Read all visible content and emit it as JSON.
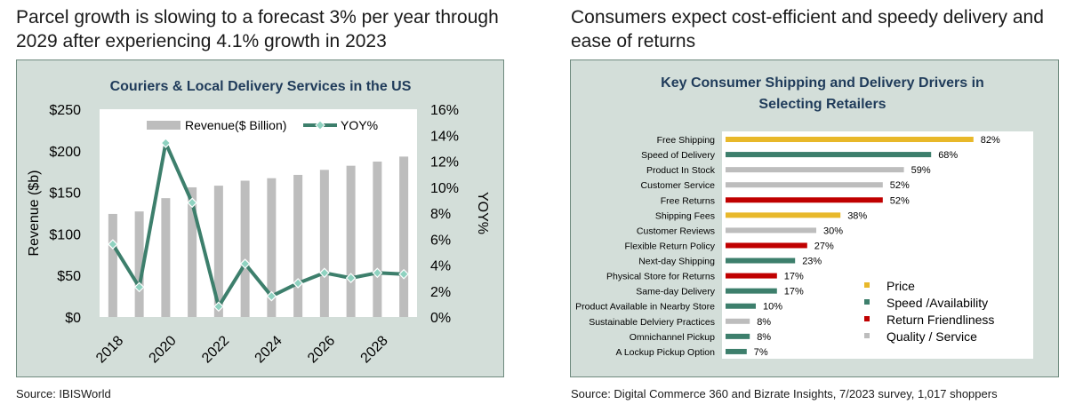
{
  "left": {
    "heading": "Parcel growth is slowing to a forecast 3% per year through 2029 after experiencing 4.1% growth in 2023",
    "source": "Source: IBISWorld"
  },
  "right": {
    "heading": "Consumers expect cost-efficient and speedy delivery and ease of returns",
    "source": "Source: Digital Commerce 360 and Bizrate Insights, 7/2023 survey,  1,017 shoppers"
  },
  "colors": {
    "bar_gray": "#bdbdbd",
    "line_green": "#3d7f6c",
    "price": "#e8b82a",
    "speed": "#3d7f6c",
    "returns": "#c00000",
    "quality": "#bdbdbd",
    "panel_bg": "#d3ded9",
    "title_blue": "#1f3b5a"
  },
  "chart_data": [
    {
      "type": "bar+line",
      "title": "Couriers & Local Delivery Services in the US",
      "ylabel": "Revenue ($b)",
      "y2label": "YOY%",
      "ylim": [
        0,
        250
      ],
      "y2lim": [
        0,
        16
      ],
      "y_ticks": [
        "$0",
        "$50",
        "$100",
        "$150",
        "$200",
        "$250"
      ],
      "y2_ticks": [
        "0%",
        "2%",
        "4%",
        "6%",
        "8%",
        "10%",
        "12%",
        "14%",
        "16%"
      ],
      "x_tick_labels": [
        "2018",
        "2020",
        "2022",
        "2024",
        "2026",
        "2028"
      ],
      "x": [
        2018,
        2019,
        2020,
        2021,
        2022,
        2023,
        2024,
        2025,
        2026,
        2027,
        2028,
        2029
      ],
      "legend_placement": "top",
      "series": [
        {
          "name": "Revenue($ Billion)",
          "type": "bar",
          "values": [
            124,
            127,
            143,
            156,
            158,
            164,
            167,
            171,
            177,
            182,
            187,
            193
          ]
        },
        {
          "name": "YOY%",
          "type": "line",
          "axis": "secondary",
          "values": [
            5.6,
            2.3,
            13.4,
            8.8,
            0.8,
            4.1,
            1.6,
            2.6,
            3.4,
            3.0,
            3.4,
            3.3
          ]
        }
      ]
    },
    {
      "type": "bar",
      "orientation": "horizontal",
      "title": "Key Consumer Shipping and Delivery Drivers in Selecting Retailers",
      "xlim": [
        0,
        100
      ],
      "legend_placement": "bottom-right",
      "legend": [
        {
          "name": "Price",
          "key": "price"
        },
        {
          "name": "Speed /Availability",
          "key": "speed"
        },
        {
          "name": "Return Friendliness",
          "key": "returns"
        },
        {
          "name": "Quality / Service",
          "key": "quality"
        }
      ],
      "categories": [
        "Free Shipping",
        "Speed of Delivery",
        "Product In Stock",
        "Customer Service",
        "Free Returns",
        "Shipping Fees",
        "Customer Reviews",
        "Flexible Return Policy",
        "Next-day Shipping",
        "Physical Store for Returns",
        "Same-day Delivery",
        "Product Available in Nearby Store",
        "Sustainable Delviery Practices",
        "Omnichannel Pickup",
        "A Lockup Pickup Option"
      ],
      "values": [
        82,
        68,
        59,
        52,
        52,
        38,
        30,
        27,
        23,
        17,
        17,
        10,
        8,
        8,
        7
      ],
      "value_labels": [
        "82%",
        "68%",
        "59%",
        "52%",
        "52%",
        "38%",
        "30%",
        "27%",
        "23%",
        "17%",
        "17%",
        "10%",
        "8%",
        "8%",
        "7%"
      ],
      "groups": [
        "price",
        "speed",
        "quality",
        "quality",
        "returns",
        "price",
        "quality",
        "returns",
        "speed",
        "returns",
        "speed",
        "speed",
        "quality",
        "speed",
        "speed"
      ]
    }
  ]
}
